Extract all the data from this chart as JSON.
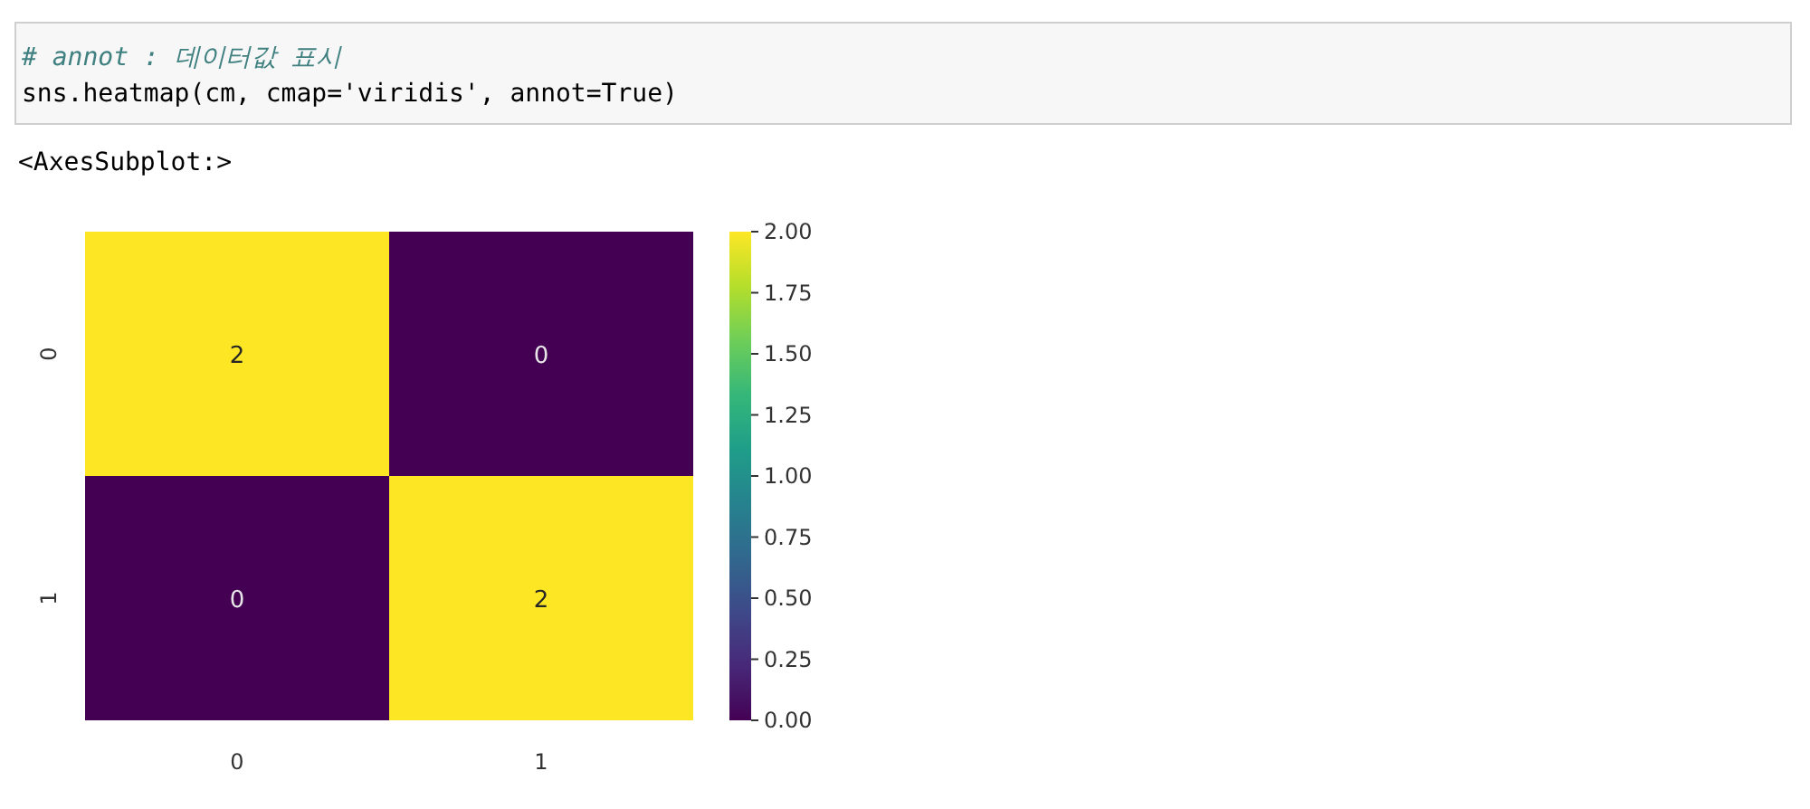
{
  "chart_data": {
    "type": "heatmap",
    "annotations": [
      "# annot : 데이터값 표시",
      "sns.heatmap(cm, cmap='viridis', annot=True)",
      "<AxesSubplot:>"
    ],
    "categories": [
      "0",
      "1"
    ],
    "y_categories": [
      "0",
      "1"
    ],
    "cells": [
      [
        2,
        0
      ],
      [
        0,
        2
      ]
    ],
    "data_labels": true,
    "clim": [
      0,
      2
    ],
    "cticks": [
      {
        "value": 0,
        "label": "0.00"
      },
      {
        "value": 0.25,
        "label": "0.25"
      },
      {
        "value": 0.5,
        "label": "0.50"
      },
      {
        "value": 0.75,
        "label": "0.75"
      },
      {
        "value": 1,
        "label": "1.00"
      },
      {
        "value": 1.25,
        "label": "1.25"
      },
      {
        "value": 1.5,
        "label": "1.50"
      },
      {
        "value": 1.75,
        "label": "1.75"
      },
      {
        "value": 2,
        "label": "2.00"
      }
    ]
  }
}
